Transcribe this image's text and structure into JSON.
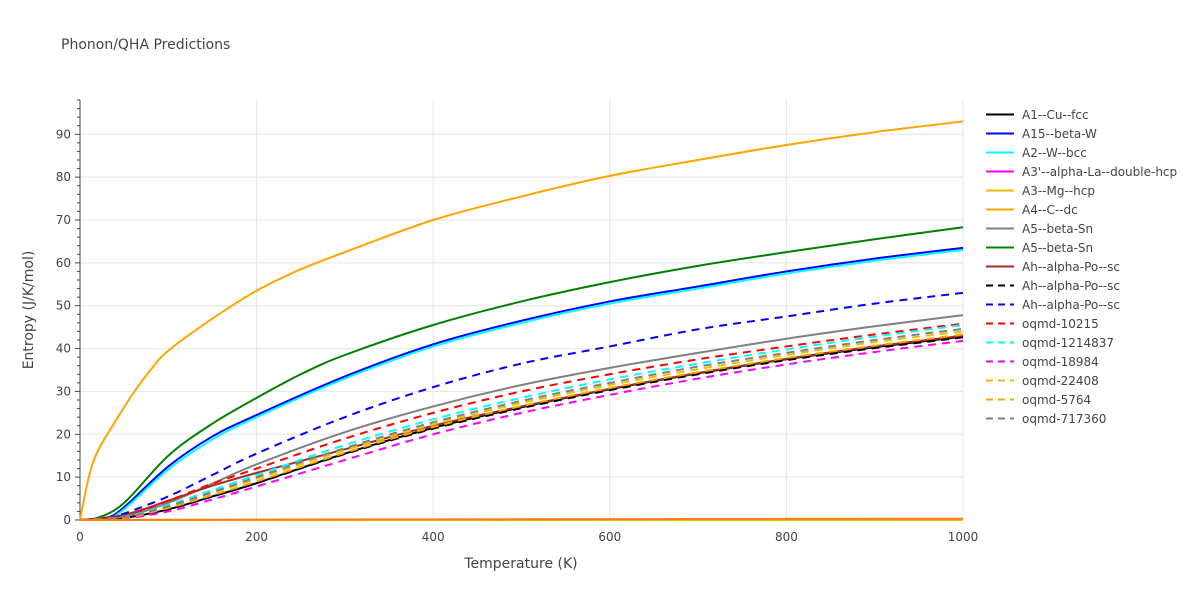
{
  "chart_data": {
    "type": "line",
    "title": "Phonon/QHA Predictions",
    "xlabel": "Temperature (K)",
    "ylabel": "Entropy (J/K/mol)",
    "xlim": [
      0,
      1000
    ],
    "ylim": [
      0,
      98
    ],
    "xticks": [
      "0",
      "200",
      "400",
      "600",
      "800",
      "1000"
    ],
    "yticks": [
      "0",
      "10",
      "20",
      "30",
      "40",
      "50",
      "60",
      "70",
      "80",
      "90"
    ],
    "grid": true,
    "legend_position": "right",
    "series": [
      {
        "name": "A1--Cu--fcc",
        "color": "#000000",
        "dash": "solid",
        "x": [
          0,
          50,
          100,
          150,
          200,
          300,
          400,
          500,
          600,
          700,
          800,
          900,
          1000
        ],
        "y": [
          0,
          0.5,
          2.5,
          5.5,
          8.6,
          15.5,
          21.5,
          26.3,
          30.5,
          34.2,
          37.5,
          40.3,
          42.8
        ]
      },
      {
        "name": "A15--beta-W",
        "color": "#0000ff",
        "dash": "solid",
        "x": [
          0,
          30,
          50,
          100,
          150,
          200,
          300,
          400,
          500,
          600,
          700,
          800,
          900,
          1000
        ],
        "y": [
          0,
          0.5,
          3,
          12.5,
          19.5,
          24.5,
          33.5,
          41,
          46.5,
          51,
          54.5,
          58,
          61,
          63.5
        ]
      },
      {
        "name": "A2--W--bcc",
        "color": "#00ffff",
        "dash": "solid",
        "x": [
          0,
          30,
          50,
          100,
          150,
          200,
          300,
          400,
          500,
          600,
          700,
          800,
          900,
          1000
        ],
        "y": [
          0,
          0.3,
          2.5,
          11.8,
          18.8,
          24,
          33,
          40.5,
          46,
          50.5,
          54,
          57.5,
          60.5,
          63
        ]
      },
      {
        "name": "A3'--alpha-La--double-hcp",
        "color": "#ff00ff",
        "dash": "solid",
        "x": [
          0,
          500,
          1000
        ],
        "y": [
          0,
          0,
          0
        ]
      },
      {
        "name": "A3--Mg--hcp",
        "color": "#e6c200",
        "dash": "solid",
        "x": [
          0,
          500,
          1000
        ],
        "y": [
          0,
          0,
          0
        ]
      },
      {
        "name": "A4--C--dc",
        "color": "#ffa500",
        "dash": "solid",
        "x": [
          0,
          10,
          20,
          40,
          60,
          80,
          100,
          150,
          200,
          250,
          300,
          400,
          500,
          600,
          700,
          800,
          900,
          1000
        ],
        "y": [
          0,
          10,
          16,
          23,
          29.5,
          35,
          39.5,
          47,
          53.5,
          58.5,
          62.5,
          70,
          75.5,
          80.3,
          84,
          87.5,
          90.5,
          93
        ]
      },
      {
        "name": "A5--beta-Sn",
        "color": "#808080",
        "dash": "solid",
        "x": [
          0,
          50,
          100,
          150,
          200,
          300,
          400,
          500,
          600,
          700,
          800,
          900,
          1000
        ],
        "y": [
          0,
          0.8,
          4,
          8.5,
          13,
          20.5,
          26.5,
          31.5,
          35.5,
          39,
          42.3,
          45.2,
          47.8
        ]
      },
      {
        "name": "A5--beta-Sn",
        "color": "#008000",
        "dash": "solid",
        "x": [
          0,
          20,
          50,
          100,
          150,
          200,
          250,
          300,
          400,
          500,
          600,
          700,
          800,
          900,
          1000
        ],
        "y": [
          0,
          0.5,
          4,
          15,
          22.5,
          28.5,
          34,
          38.5,
          45.5,
          51,
          55.5,
          59.3,
          62.5,
          65.5,
          68.3
        ]
      },
      {
        "name": "Ah--alpha-Po--sc",
        "color": "#a52a2a",
        "dash": "solid",
        "x": [
          0,
          50,
          100,
          150,
          200,
          300,
          400,
          500,
          600,
          700,
          800,
          900,
          1000
        ],
        "y": [
          0,
          1.2,
          4.5,
          8,
          11,
          16.5,
          22,
          26.5,
          30.6,
          34.3,
          37.6,
          40.5,
          43
        ]
      },
      {
        "name": "Ah--alpha-Po--sc",
        "color": "#000000",
        "dash": "dash",
        "x": [
          0,
          50,
          100,
          150,
          200,
          300,
          400,
          500,
          600,
          700,
          800,
          900,
          1000
        ],
        "y": [
          0,
          0.5,
          2.5,
          5.5,
          8.6,
          15.4,
          21.3,
          26.1,
          30.3,
          34,
          37.3,
          40.1,
          42.6
        ]
      },
      {
        "name": "Ah--alpha-Po--sc",
        "color": "#0000ff",
        "dash": "dash",
        "x": [
          0,
          30,
          50,
          100,
          150,
          200,
          300,
          400,
          500,
          600,
          700,
          800,
          900,
          1000
        ],
        "y": [
          0,
          0.3,
          1.5,
          5.5,
          10.5,
          15.5,
          24,
          31,
          36.5,
          40.5,
          44.5,
          47.5,
          50.5,
          53
        ]
      },
      {
        "name": "oqmd-10215",
        "color": "#ff0000",
        "dash": "dash",
        "x": [
          0,
          50,
          100,
          150,
          200,
          300,
          400,
          500,
          600,
          700,
          800,
          900,
          1000
        ],
        "y": [
          0,
          1,
          4.5,
          8.5,
          12,
          19,
          25,
          30,
          34,
          37.5,
          40.5,
          43.3,
          45.8
        ]
      },
      {
        "name": "oqmd-1214837",
        "color": "#00ffff",
        "dash": "dash",
        "x": [
          0,
          50,
          100,
          150,
          200,
          300,
          400,
          500,
          600,
          700,
          800,
          900,
          1000
        ],
        "y": [
          0,
          0.8,
          3.5,
          7,
          10.5,
          17.5,
          23.5,
          28.5,
          32.8,
          36.5,
          39.8,
          42.8,
          45.5
        ]
      },
      {
        "name": "oqmd-18984",
        "color": "#ff00ff",
        "dash": "dash",
        "x": [
          0,
          50,
          100,
          150,
          200,
          300,
          400,
          500,
          600,
          700,
          800,
          900,
          1000
        ],
        "y": [
          0,
          0.4,
          2,
          4.8,
          7.8,
          14,
          20,
          25,
          29.2,
          33,
          36.3,
          39.2,
          41.8
        ]
      },
      {
        "name": "oqmd-22408",
        "color": "#e6c200",
        "dash": "dash",
        "x": [
          0,
          50,
          100,
          150,
          200,
          300,
          400,
          500,
          600,
          700,
          800,
          900,
          1000
        ],
        "y": [
          0,
          0.6,
          3,
          6.3,
          9.6,
          16.3,
          22.3,
          27.3,
          31.5,
          35.2,
          38.5,
          41.5,
          44
        ]
      },
      {
        "name": "oqmd-5764",
        "color": "#ffa500",
        "dash": "dash",
        "x": [
          0,
          50,
          100,
          150,
          200,
          300,
          400,
          500,
          600,
          700,
          800,
          900,
          1000
        ],
        "y": [
          0,
          0.5,
          2.8,
          5.8,
          9,
          15.7,
          21.7,
          26.6,
          30.8,
          34.5,
          37.8,
          40.7,
          43.3
        ]
      },
      {
        "name": "oqmd-717360",
        "color": "#808080",
        "dash": "dash",
        "x": [
          0,
          50,
          100,
          150,
          200,
          300,
          400,
          500,
          600,
          700,
          800,
          900,
          1000
        ],
        "y": [
          0,
          0.7,
          3.2,
          6.5,
          10,
          16.8,
          22.8,
          27.8,
          32,
          35.8,
          39,
          42,
          44.6
        ]
      },
      {
        "name": "",
        "color": "#ff7f0e",
        "dash": "solid",
        "show_in_legend": false,
        "x": [
          0,
          200,
          400,
          600,
          800,
          1000
        ],
        "y": [
          0,
          0.1,
          0.15,
          0.2,
          0.25,
          0.3
        ]
      }
    ]
  }
}
